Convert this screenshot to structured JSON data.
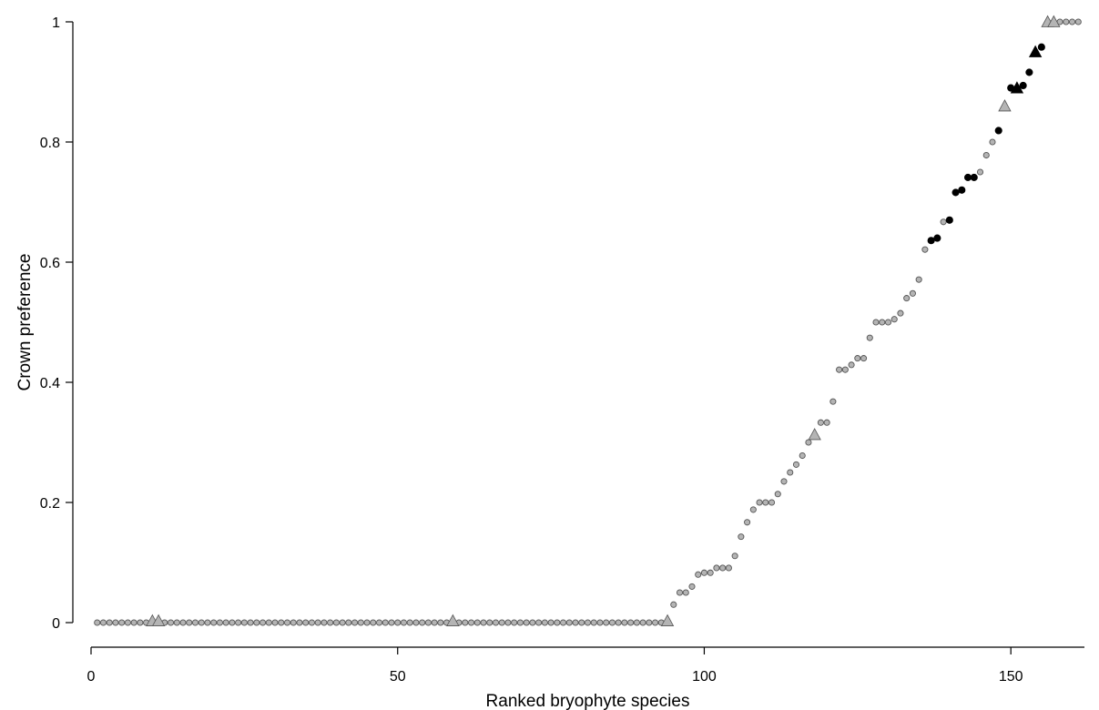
{
  "chart_data": {
    "type": "scatter",
    "title": "",
    "xlabel": "Ranked bryophyte species",
    "ylabel": "Crown preference",
    "xlim": [
      0,
      162
    ],
    "ylim": [
      0,
      1
    ],
    "xticks": [
      0,
      50,
      100,
      150
    ],
    "yticks": [
      0,
      0.2,
      0.4,
      0.6,
      0.8,
      1
    ],
    "xtick_labels": [
      "0",
      "50",
      "100",
      "150"
    ],
    "ytick_labels": [
      "0",
      "0.2",
      "0.4",
      "0.6",
      "0.8",
      "1"
    ],
    "grid": false,
    "colors": {
      "grey": "#b4b4b4",
      "black": "#000000",
      "edge": "#555555"
    },
    "series": [
      {
        "marker": "circle",
        "color": "grey",
        "points": [
          [
            1,
            0
          ],
          [
            2,
            0
          ],
          [
            3,
            0
          ],
          [
            4,
            0
          ],
          [
            5,
            0
          ],
          [
            6,
            0
          ],
          [
            7,
            0
          ],
          [
            8,
            0
          ],
          [
            9,
            0
          ],
          [
            12,
            0
          ],
          [
            13,
            0
          ],
          [
            14,
            0
          ],
          [
            15,
            0
          ],
          [
            16,
            0
          ],
          [
            17,
            0
          ],
          [
            18,
            0
          ],
          [
            19,
            0
          ],
          [
            20,
            0
          ],
          [
            21,
            0
          ],
          [
            22,
            0
          ],
          [
            23,
            0
          ],
          [
            24,
            0
          ],
          [
            25,
            0
          ],
          [
            26,
            0
          ],
          [
            27,
            0
          ],
          [
            28,
            0
          ],
          [
            29,
            0
          ],
          [
            30,
            0
          ],
          [
            31,
            0
          ],
          [
            32,
            0
          ],
          [
            33,
            0
          ],
          [
            34,
            0
          ],
          [
            35,
            0
          ],
          [
            36,
            0
          ],
          [
            37,
            0
          ],
          [
            38,
            0
          ],
          [
            39,
            0
          ],
          [
            40,
            0
          ],
          [
            41,
            0
          ],
          [
            42,
            0
          ],
          [
            43,
            0
          ],
          [
            44,
            0
          ],
          [
            45,
            0
          ],
          [
            46,
            0
          ],
          [
            47,
            0
          ],
          [
            48,
            0
          ],
          [
            49,
            0
          ],
          [
            50,
            0
          ],
          [
            51,
            0
          ],
          [
            52,
            0
          ],
          [
            53,
            0
          ],
          [
            54,
            0
          ],
          [
            55,
            0
          ],
          [
            56,
            0
          ],
          [
            57,
            0
          ],
          [
            58,
            0
          ],
          [
            60,
            0
          ],
          [
            61,
            0
          ],
          [
            62,
            0
          ],
          [
            63,
            0
          ],
          [
            64,
            0
          ],
          [
            65,
            0
          ],
          [
            66,
            0
          ],
          [
            67,
            0
          ],
          [
            68,
            0
          ],
          [
            69,
            0
          ],
          [
            70,
            0
          ],
          [
            71,
            0
          ],
          [
            72,
            0
          ],
          [
            73,
            0
          ],
          [
            74,
            0
          ],
          [
            75,
            0
          ],
          [
            76,
            0
          ],
          [
            77,
            0
          ],
          [
            78,
            0
          ],
          [
            79,
            0
          ],
          [
            80,
            0
          ],
          [
            81,
            0
          ],
          [
            82,
            0
          ],
          [
            83,
            0
          ],
          [
            84,
            0
          ],
          [
            85,
            0
          ],
          [
            86,
            0
          ],
          [
            87,
            0
          ],
          [
            88,
            0
          ],
          [
            89,
            0
          ],
          [
            90,
            0
          ],
          [
            91,
            0
          ],
          [
            92,
            0
          ],
          [
            93,
            0
          ],
          [
            95,
            0.03
          ],
          [
            96,
            0.05
          ],
          [
            97,
            0.05
          ],
          [
            98,
            0.06
          ],
          [
            99,
            0.08
          ],
          [
            100,
            0.083
          ],
          [
            101,
            0.083
          ],
          [
            102,
            0.091
          ],
          [
            103,
            0.091
          ],
          [
            104,
            0.091
          ],
          [
            105,
            0.111
          ],
          [
            106,
            0.143
          ],
          [
            107,
            0.167
          ],
          [
            108,
            0.188
          ],
          [
            109,
            0.2
          ],
          [
            110,
            0.2
          ],
          [
            111,
            0.2
          ],
          [
            112,
            0.214
          ],
          [
            113,
            0.235
          ],
          [
            114,
            0.25
          ],
          [
            115,
            0.263
          ],
          [
            116,
            0.278
          ],
          [
            117,
            0.3
          ],
          [
            119,
            0.333
          ],
          [
            120,
            0.333
          ],
          [
            121,
            0.368
          ],
          [
            122,
            0.421
          ],
          [
            123,
            0.421
          ],
          [
            124,
            0.429
          ],
          [
            125,
            0.44
          ],
          [
            126,
            0.44
          ],
          [
            127,
            0.474
          ],
          [
            128,
            0.5
          ],
          [
            129,
            0.5
          ],
          [
            130,
            0.5
          ],
          [
            131,
            0.505
          ],
          [
            132,
            0.515
          ],
          [
            133,
            0.54
          ],
          [
            134,
            0.548
          ],
          [
            135,
            0.571
          ],
          [
            136,
            0.621
          ],
          [
            139,
            0.667
          ],
          [
            145,
            0.75
          ],
          [
            146,
            0.778
          ],
          [
            147,
            0.8
          ],
          [
            157,
            1
          ],
          [
            158,
            1
          ],
          [
            159,
            1
          ],
          [
            160,
            1
          ],
          [
            161,
            1
          ]
        ]
      },
      {
        "marker": "circle",
        "color": "black",
        "points": [
          [
            137,
            0.636
          ],
          [
            138,
            0.64
          ],
          [
            140,
            0.67
          ],
          [
            141,
            0.716
          ],
          [
            142,
            0.72
          ],
          [
            143,
            0.741
          ],
          [
            144,
            0.741
          ],
          [
            148,
            0.819
          ],
          [
            150,
            0.89
          ],
          [
            152,
            0.894
          ],
          [
            153,
            0.916
          ],
          [
            155,
            0.958
          ]
        ]
      },
      {
        "marker": "triangle",
        "color": "grey",
        "points": [
          [
            10,
            0.003
          ],
          [
            11,
            0.003
          ],
          [
            59,
            0.003
          ],
          [
            94,
            0.003
          ],
          [
            118,
            0.313
          ],
          [
            149,
            0.86
          ],
          [
            156,
            1
          ],
          [
            157,
            1
          ]
        ]
      },
      {
        "marker": "triangle",
        "color": "black",
        "points": [
          [
            151,
            0.89
          ],
          [
            154,
            0.95
          ]
        ]
      }
    ]
  }
}
